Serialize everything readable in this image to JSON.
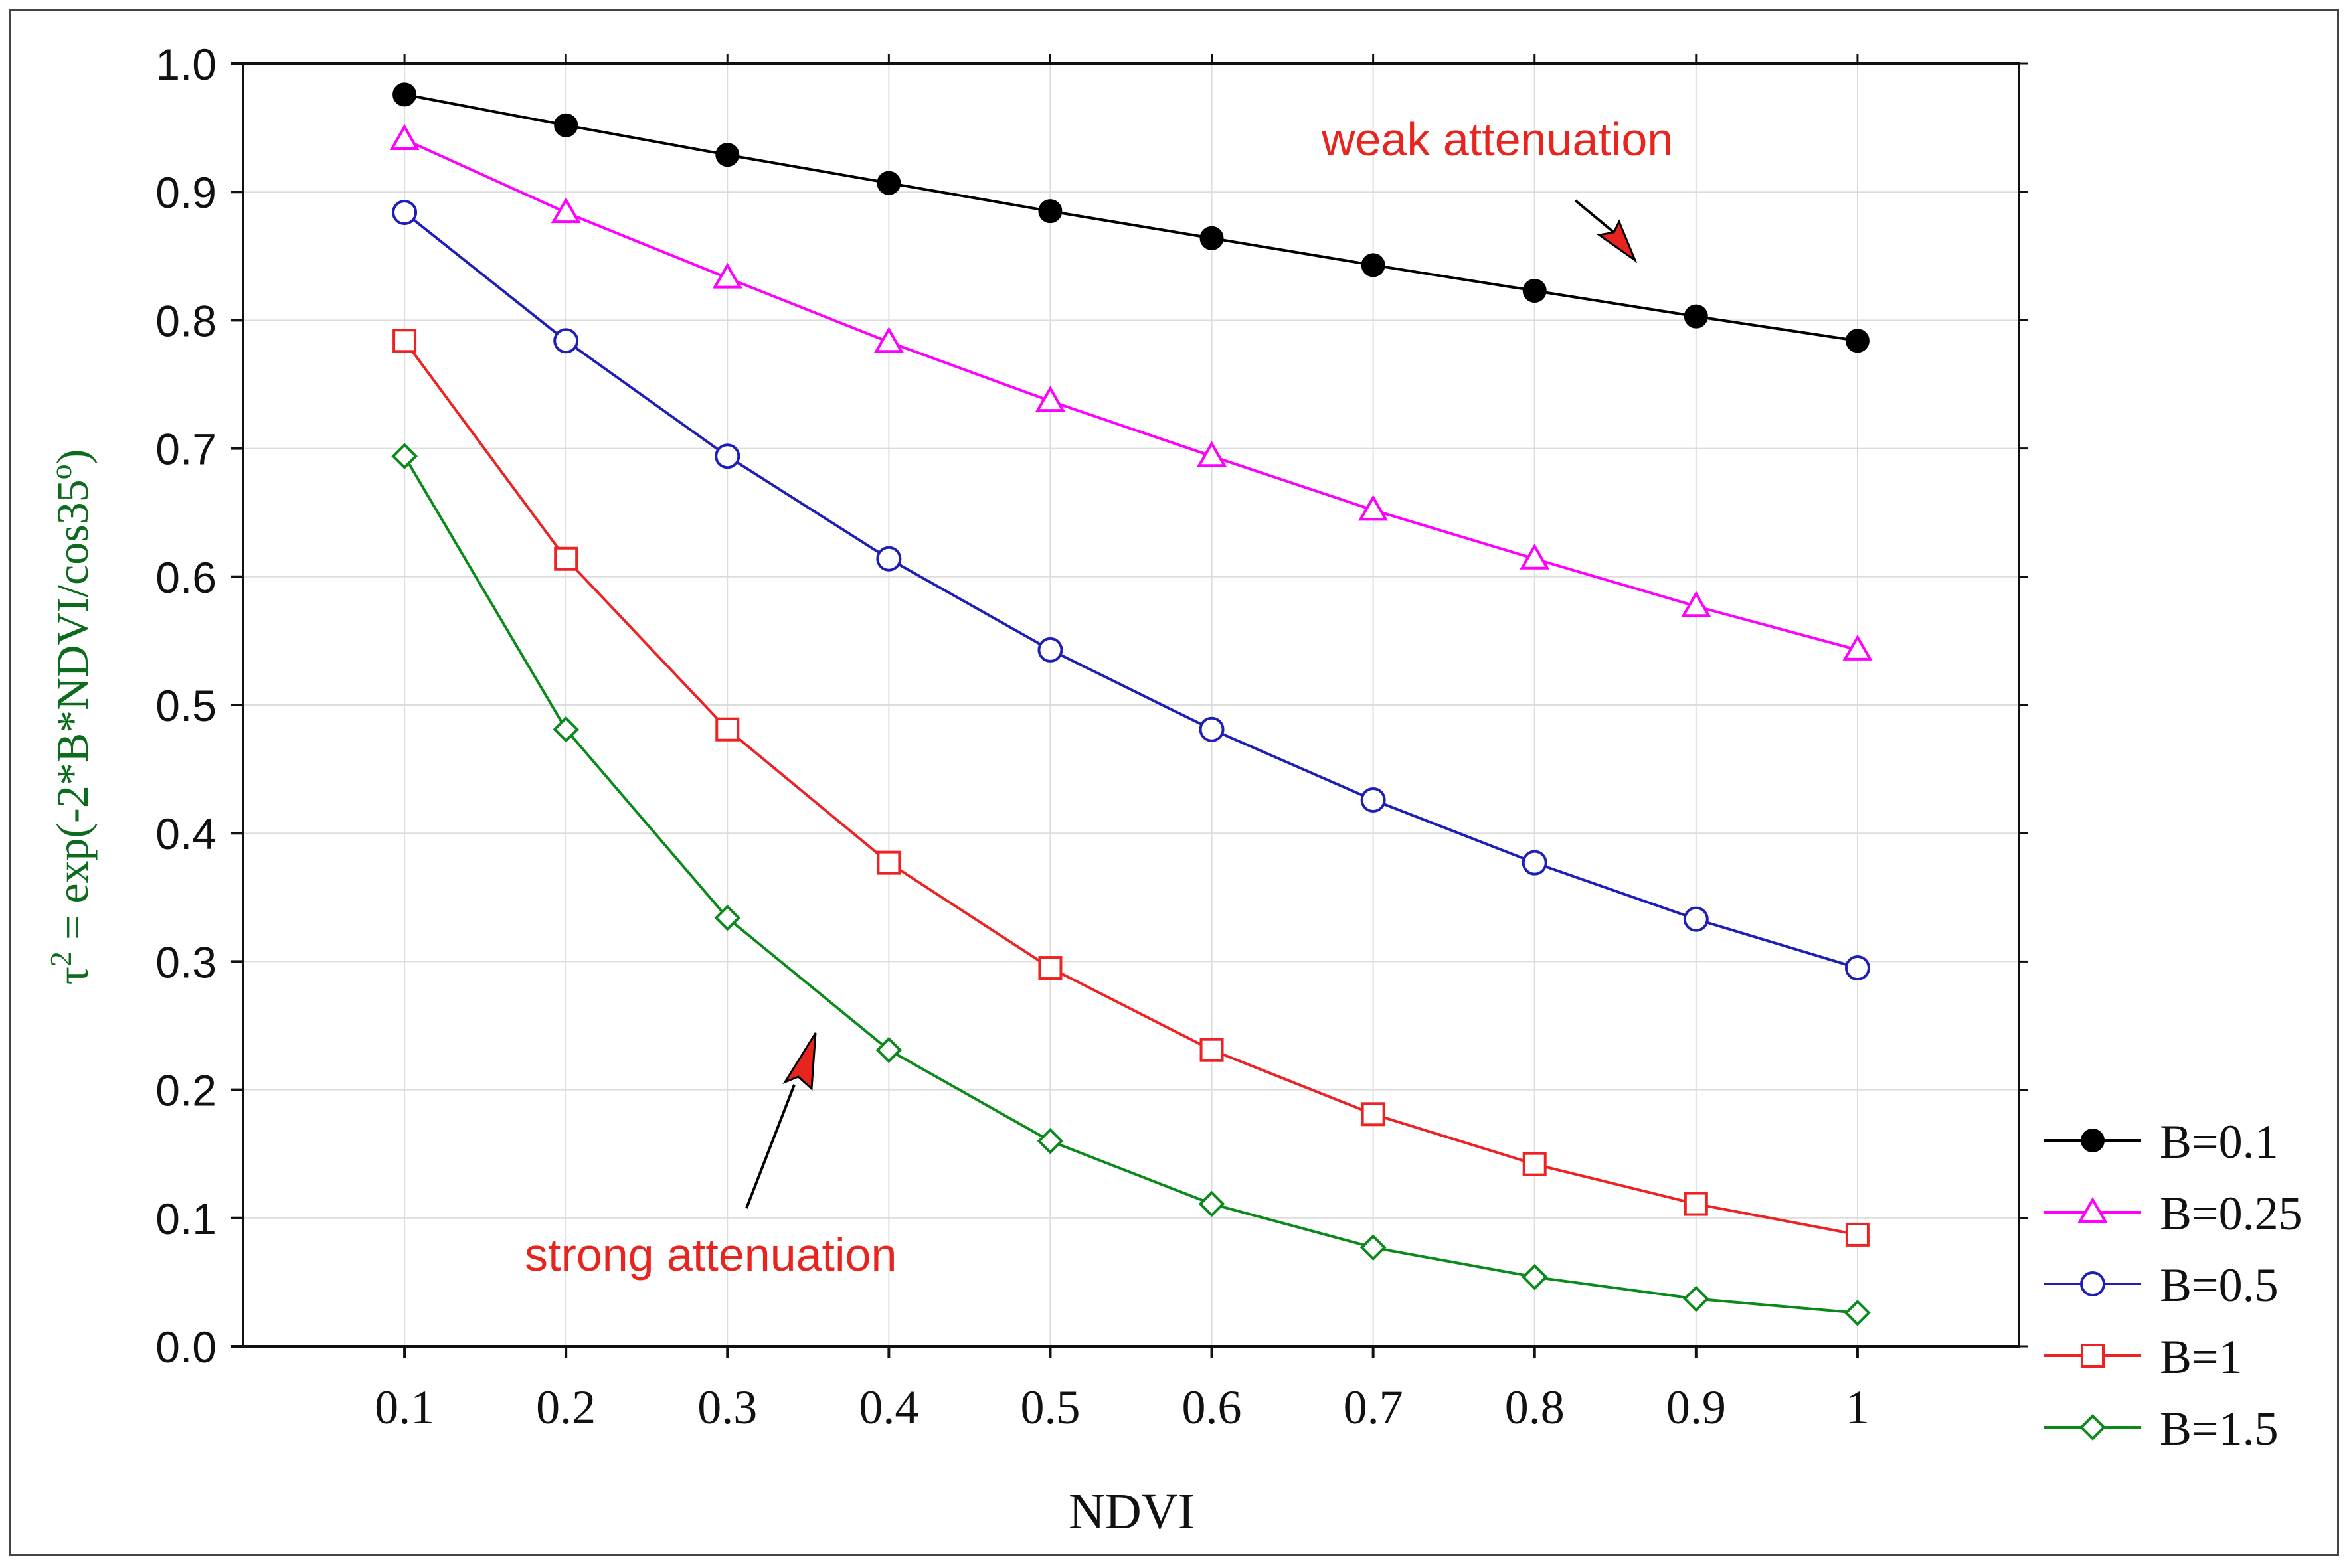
{
  "chart_data": {
    "type": "line",
    "title": "",
    "xlabel": "NDVI",
    "ylabel_parts": {
      "prefix": "τ",
      "sup": "2",
      "mid": " = exp(-2*B*NDVI/cos35",
      "sup2": "o",
      "suffix": ")"
    },
    "x": [
      0.1,
      0.2,
      0.3,
      0.4,
      0.5,
      0.6,
      0.7,
      0.8,
      0.9,
      1
    ],
    "x_tick_labels": [
      "0.1",
      "0.2",
      "0.3",
      "0.4",
      "0.5",
      "0.6",
      "0.7",
      "0.8",
      "0.9",
      "1"
    ],
    "xlim": [
      0,
      1.1
    ],
    "ylim": [
      0,
      1.0
    ],
    "y_tick_labels": [
      "0.0",
      "0.1",
      "0.2",
      "0.3",
      "0.4",
      "0.5",
      "0.6",
      "0.7",
      "0.8",
      "0.9",
      "1.0"
    ],
    "y_ticks": [
      0,
      0.1,
      0.2,
      0.3,
      0.4,
      0.5,
      0.6,
      0.7,
      0.8,
      0.9,
      1.0
    ],
    "grid": true,
    "legend_position": "bottom-right-outside",
    "series": [
      {
        "name": "B=0.1",
        "color": "#000000",
        "marker": "filled-circle",
        "values": [
          0.976,
          0.952,
          0.929,
          0.907,
          0.885,
          0.864,
          0.843,
          0.823,
          0.803,
          0.784
        ]
      },
      {
        "name": "B=0.25",
        "color": "#ff00ff",
        "marker": "triangle",
        "values": [
          0.941,
          0.884,
          0.833,
          0.783,
          0.737,
          0.694,
          0.652,
          0.614,
          0.577,
          0.543
        ]
      },
      {
        "name": "B=0.5",
        "color": "#1f1fb8",
        "marker": "circle",
        "values": [
          0.884,
          0.784,
          0.694,
          0.614,
          0.543,
          0.481,
          0.426,
          0.377,
          0.333,
          0.295
        ]
      },
      {
        "name": "B=1",
        "color": "#ee2222",
        "marker": "square",
        "values": [
          0.784,
          0.614,
          0.481,
          0.377,
          0.295,
          0.231,
          0.181,
          0.142,
          0.111,
          0.087
        ]
      },
      {
        "name": "B=1.5",
        "color": "#0a8a1a",
        "marker": "diamond",
        "values": [
          0.694,
          0.481,
          0.334,
          0.231,
          0.16,
          0.111,
          0.077,
          0.054,
          0.037,
          0.026
        ]
      }
    ],
    "annotations": [
      {
        "text": "weak attenuation",
        "color": "#e8241f"
      },
      {
        "text": "strong attenuation",
        "color": "#e8241f"
      }
    ]
  }
}
